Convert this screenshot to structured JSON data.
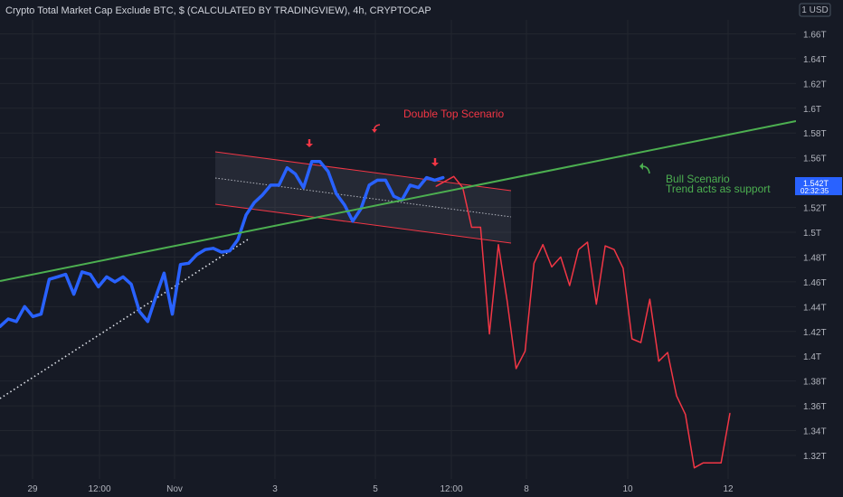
{
  "chart_data": {
    "type": "line",
    "title": "Crypto Total Market Cap Exclude BTC, $ (CALCULATED BY TRADINGVIEW), 4h, CRYPTOCAP",
    "currency_label": "1 USD",
    "y_ticks": [
      "1.66T",
      "1.64T",
      "1.62T",
      "1.6T",
      "1.58T",
      "1.56T",
      "1.52T",
      "1.5T",
      "1.48T",
      "1.46T",
      "1.44T",
      "1.42T",
      "1.4T",
      "1.38T",
      "1.36T",
      "1.34T",
      "1.32T"
    ],
    "x_ticks": [
      "29",
      "12:00",
      "Nov",
      "3",
      "5",
      "12:00",
      "8",
      "10",
      "12"
    ],
    "price_label": {
      "value": "1.542T",
      "countdown": "02:32:35"
    },
    "colors": {
      "background": "#161a25",
      "grid": "#22262f",
      "history": "#2962ff",
      "projection": "#f23645",
      "trendline": "#4caf50",
      "channel": "#f23645"
    },
    "series": [
      {
        "values": [
          1.424,
          1.43,
          1.428,
          1.44,
          1.432,
          1.434,
          1.462,
          1.464,
          1.466,
          1.45,
          1.468,
          1.466,
          1.456,
          1.464,
          1.46,
          1.464,
          1.458,
          1.436,
          1.428,
          1.448,
          1.467,
          1.434,
          1.474,
          1.475,
          1.482,
          1.486,
          1.487,
          1.484,
          1.485,
          1.494,
          1.514,
          1.524,
          1.53,
          1.538,
          1.538,
          1.552,
          1.547,
          1.536,
          1.557,
          1.557,
          1.549,
          1.531,
          1.522,
          1.509,
          1.519,
          1.538,
          1.542,
          1.542,
          1.529,
          1.526,
          1.538,
          1.536,
          1.544,
          1.542,
          1.544
        ]
      },
      {
        "values": [
          1.537,
          1.541,
          1.545,
          1.536,
          1.504,
          1.504,
          1.418,
          1.49,
          1.444,
          1.39,
          1.404,
          1.475,
          1.49,
          1.472,
          1.48,
          1.457,
          1.486,
          1.492,
          1.442,
          1.489,
          1.486,
          1.471,
          1.414,
          1.411,
          1.446,
          1.396,
          1.403,
          1.368,
          1.353,
          1.31,
          1.314,
          1.314,
          1.314,
          1.354
        ]
      }
    ],
    "annotations": [
      {
        "text": "Double Top Scenario",
        "color": "#f23645"
      },
      {
        "text": "Bull Scenario",
        "color": "#4caf50"
      },
      {
        "text": "Trend acts as support",
        "color": "#4caf50"
      }
    ],
    "grid": true
  }
}
